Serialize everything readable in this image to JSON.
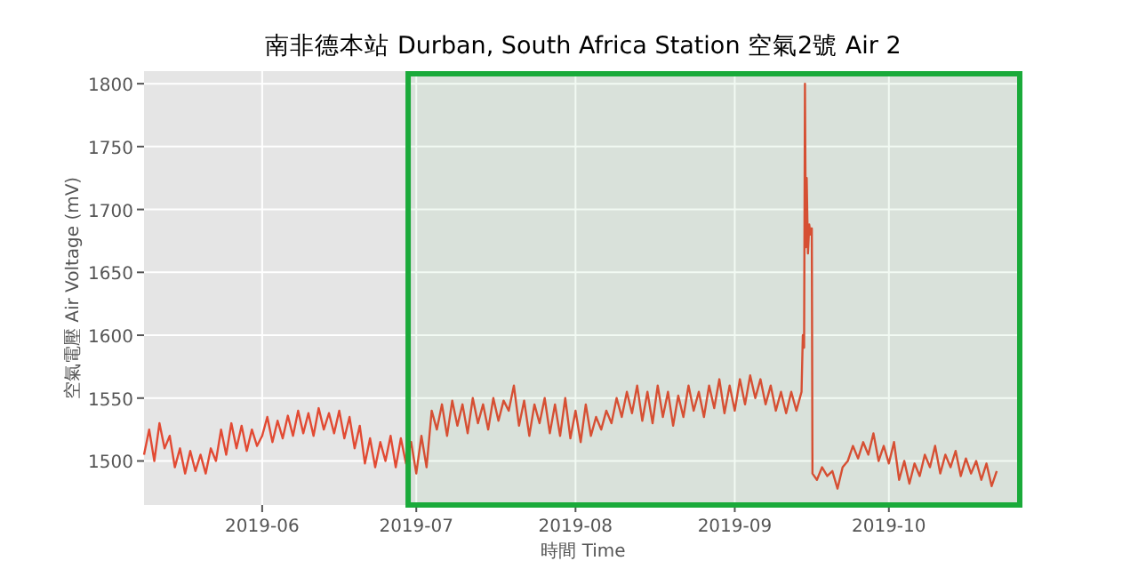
{
  "chart_data": {
    "type": "line",
    "title": "南非德本站 Durban, South Africa Station 空氣2號 Air 2",
    "xlabel": "時間 Time",
    "ylabel": "空氣電壓 Air Voltage (mV)",
    "x": [
      "2019-05-09",
      "2019-05-10",
      "2019-05-11",
      "2019-05-12",
      "2019-05-13",
      "2019-05-14",
      "2019-05-15",
      "2019-05-16",
      "2019-05-17",
      "2019-05-18",
      "2019-05-19",
      "2019-05-20",
      "2019-05-21",
      "2019-05-22",
      "2019-05-23",
      "2019-05-24",
      "2019-05-25",
      "2019-05-26",
      "2019-05-27",
      "2019-05-28",
      "2019-05-29",
      "2019-05-30",
      "2019-05-31",
      "2019-06-01",
      "2019-06-02",
      "2019-06-03",
      "2019-06-04",
      "2019-06-05",
      "2019-06-06",
      "2019-06-07",
      "2019-06-08",
      "2019-06-09",
      "2019-06-10",
      "2019-06-11",
      "2019-06-12",
      "2019-06-13",
      "2019-06-14",
      "2019-06-15",
      "2019-06-16",
      "2019-06-17",
      "2019-06-18",
      "2019-06-19",
      "2019-06-20",
      "2019-06-21",
      "2019-06-22",
      "2019-06-23",
      "2019-06-24",
      "2019-06-25",
      "2019-06-26",
      "2019-06-27",
      "2019-06-28",
      "2019-06-29",
      "2019-06-30",
      "2019-07-01",
      "2019-07-02",
      "2019-07-03",
      "2019-07-04",
      "2019-07-05",
      "2019-07-06",
      "2019-07-07",
      "2019-07-08",
      "2019-07-09",
      "2019-07-10",
      "2019-07-11",
      "2019-07-12",
      "2019-07-13",
      "2019-07-14",
      "2019-07-15",
      "2019-07-16",
      "2019-07-17",
      "2019-07-18",
      "2019-07-19",
      "2019-07-20",
      "2019-07-21",
      "2019-07-22",
      "2019-07-23",
      "2019-07-24",
      "2019-07-25",
      "2019-07-26",
      "2019-07-27",
      "2019-07-28",
      "2019-07-29",
      "2019-07-30",
      "2019-07-31",
      "2019-08-01",
      "2019-08-02",
      "2019-08-03",
      "2019-08-04",
      "2019-08-05",
      "2019-08-06",
      "2019-08-07",
      "2019-08-08",
      "2019-08-09",
      "2019-08-10",
      "2019-08-11",
      "2019-08-12",
      "2019-08-13",
      "2019-08-14",
      "2019-08-15",
      "2019-08-16",
      "2019-08-17",
      "2019-08-18",
      "2019-08-19",
      "2019-08-20",
      "2019-08-21",
      "2019-08-22",
      "2019-08-23",
      "2019-08-24",
      "2019-08-25",
      "2019-08-26",
      "2019-08-27",
      "2019-08-28",
      "2019-08-29",
      "2019-08-30",
      "2019-08-31",
      "2019-09-01",
      "2019-09-02",
      "2019-09-03",
      "2019-09-04",
      "2019-09-05",
      "2019-09-06",
      "2019-09-07",
      "2019-09-08",
      "2019-09-09",
      "2019-09-10",
      "2019-09-11",
      "2019-09-12",
      "2019-09-13",
      "2019-09-14",
      "2019-09-14T06:00",
      "2019-09-14T12:00",
      "2019-09-14T16:00",
      "2019-09-14T20:00",
      "2019-09-15",
      "2019-09-15T06:00",
      "2019-09-15T12:00",
      "2019-09-15T18:00",
      "2019-09-16",
      "2019-09-16T03:00",
      "2019-09-17",
      "2019-09-18",
      "2019-09-19",
      "2019-09-20",
      "2019-09-21",
      "2019-09-22",
      "2019-09-23",
      "2019-09-24",
      "2019-09-25",
      "2019-09-26",
      "2019-09-27",
      "2019-09-28",
      "2019-09-29",
      "2019-09-30",
      "2019-10-01",
      "2019-10-02",
      "2019-10-03",
      "2019-10-04",
      "2019-10-05",
      "2019-10-06",
      "2019-10-07",
      "2019-10-08",
      "2019-10-09",
      "2019-10-10",
      "2019-10-11",
      "2019-10-12",
      "2019-10-13",
      "2019-10-14",
      "2019-10-15",
      "2019-10-16",
      "2019-10-17",
      "2019-10-18",
      "2019-10-19",
      "2019-10-20",
      "2019-10-21",
      "2019-10-22"
    ],
    "series": [
      {
        "color": "#e24a33",
        "values": [
          1505,
          1525,
          1500,
          1530,
          1510,
          1520,
          1495,
          1510,
          1490,
          1508,
          1492,
          1505,
          1490,
          1510,
          1500,
          1525,
          1505,
          1530,
          1510,
          1528,
          1508,
          1525,
          1512,
          1520,
          1535,
          1515,
          1532,
          1518,
          1536,
          1520,
          1540,
          1522,
          1538,
          1520,
          1542,
          1525,
          1538,
          1522,
          1540,
          1518,
          1535,
          1510,
          1528,
          1498,
          1518,
          1495,
          1515,
          1500,
          1520,
          1495,
          1518,
          1498,
          1515,
          1490,
          1520,
          1495,
          1540,
          1525,
          1545,
          1520,
          1548,
          1528,
          1545,
          1522,
          1550,
          1530,
          1545,
          1525,
          1550,
          1532,
          1548,
          1540,
          1560,
          1528,
          1548,
          1520,
          1545,
          1530,
          1550,
          1522,
          1545,
          1520,
          1550,
          1518,
          1540,
          1515,
          1545,
          1520,
          1535,
          1525,
          1540,
          1530,
          1550,
          1535,
          1555,
          1538,
          1560,
          1532,
          1555,
          1530,
          1560,
          1535,
          1555,
          1528,
          1552,
          1535,
          1560,
          1540,
          1555,
          1535,
          1560,
          1542,
          1565,
          1538,
          1560,
          1540,
          1565,
          1545,
          1568,
          1550,
          1565,
          1545,
          1560,
          1540,
          1555,
          1538,
          1555,
          1540,
          1555,
          1600,
          1590,
          1800,
          1670,
          1725,
          1665,
          1688,
          1680,
          1685,
          1490,
          1485,
          1495,
          1488,
          1492,
          1478,
          1495,
          1500,
          1512,
          1502,
          1515,
          1505,
          1522,
          1500,
          1512,
          1498,
          1515,
          1485,
          1500,
          1482,
          1498,
          1488,
          1505,
          1495,
          1512,
          1490,
          1505,
          1495,
          1508,
          1488,
          1502,
          1490,
          1500,
          1485,
          1498,
          1480,
          1492
        ]
      }
    ],
    "xlim": [
      "2019-05-09",
      "2019-10-27"
    ],
    "ylim": [
      1465,
      1810
    ],
    "xticks": [
      {
        "value": "2019-06-01",
        "label": "2019-06"
      },
      {
        "value": "2019-07-01",
        "label": "2019-07"
      },
      {
        "value": "2019-08-01",
        "label": "2019-08"
      },
      {
        "value": "2019-09-01",
        "label": "2019-09"
      },
      {
        "value": "2019-10-01",
        "label": "2019-10"
      }
    ],
    "yticks": [
      1500,
      1550,
      1600,
      1650,
      1700,
      1750,
      1800
    ],
    "bands": [
      {
        "axis": "x",
        "from": "2019-06-29T10:00",
        "to": "2019-10-27",
        "color": "#1aaa3a"
      }
    ],
    "grid": true,
    "marker": "none",
    "line_style": "solid"
  }
}
